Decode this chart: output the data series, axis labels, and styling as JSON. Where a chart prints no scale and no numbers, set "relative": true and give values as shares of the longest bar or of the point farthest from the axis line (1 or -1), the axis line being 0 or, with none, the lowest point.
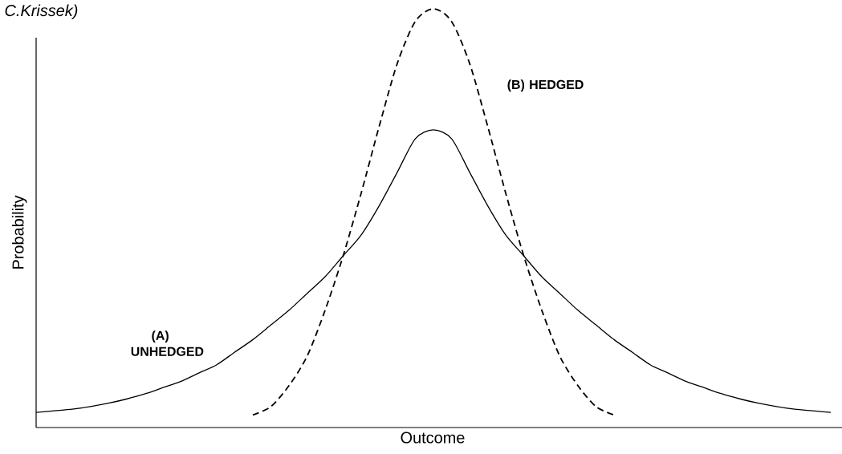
{
  "chart_data": {
    "type": "line",
    "relative": true,
    "xlabel": "Outcome",
    "ylabel": "Probability",
    "annotations": [
      "C.Krissek)"
    ],
    "categories": [
      null,
      null,
      null,
      null,
      null,
      null,
      null,
      null,
      null,
      null,
      null,
      null,
      null,
      null,
      null,
      null,
      null,
      null,
      null,
      null,
      null,
      null,
      null,
      null,
      null,
      null,
      null,
      null,
      null,
      null,
      null,
      null,
      null,
      null,
      null,
      null,
      null,
      null,
      null,
      null,
      null,
      null,
      null,
      null,
      null
    ],
    "series": [
      {
        "name": "(A) UNHEDGED",
        "color": "#000000",
        "line_style": "solid",
        "values": [
          0.036,
          0.04,
          0.044,
          0.05,
          0.058,
          0.068,
          0.08,
          0.095,
          0.11,
          0.13,
          0.15,
          0.18,
          0.21,
          0.245,
          0.28,
          0.32,
          0.36,
          0.41,
          0.46,
          0.53,
          0.61,
          0.69,
          0.711,
          0.69,
          0.61,
          0.53,
          0.46,
          0.41,
          0.36,
          0.32,
          0.28,
          0.245,
          0.21,
          0.18,
          0.15,
          0.13,
          0.11,
          0.095,
          0.08,
          0.068,
          0.058,
          0.05,
          0.044,
          0.04,
          0.036
        ]
      },
      {
        "name": "(B) HEDGED",
        "color": "#000000",
        "line_style": "dashed",
        "values": [
          null,
          null,
          null,
          null,
          null,
          null,
          null,
          null,
          null,
          null,
          null,
          null,
          0.03,
          0.05,
          0.1,
          0.17,
          0.28,
          0.41,
          0.56,
          0.72,
          0.87,
          0.97,
          1,
          0.97,
          0.87,
          0.72,
          0.56,
          0.41,
          0.28,
          0.17,
          0.1,
          0.05,
          0.03,
          null,
          null,
          null,
          null,
          null,
          null,
          null,
          null,
          null,
          null,
          null,
          null
        ]
      }
    ]
  }
}
